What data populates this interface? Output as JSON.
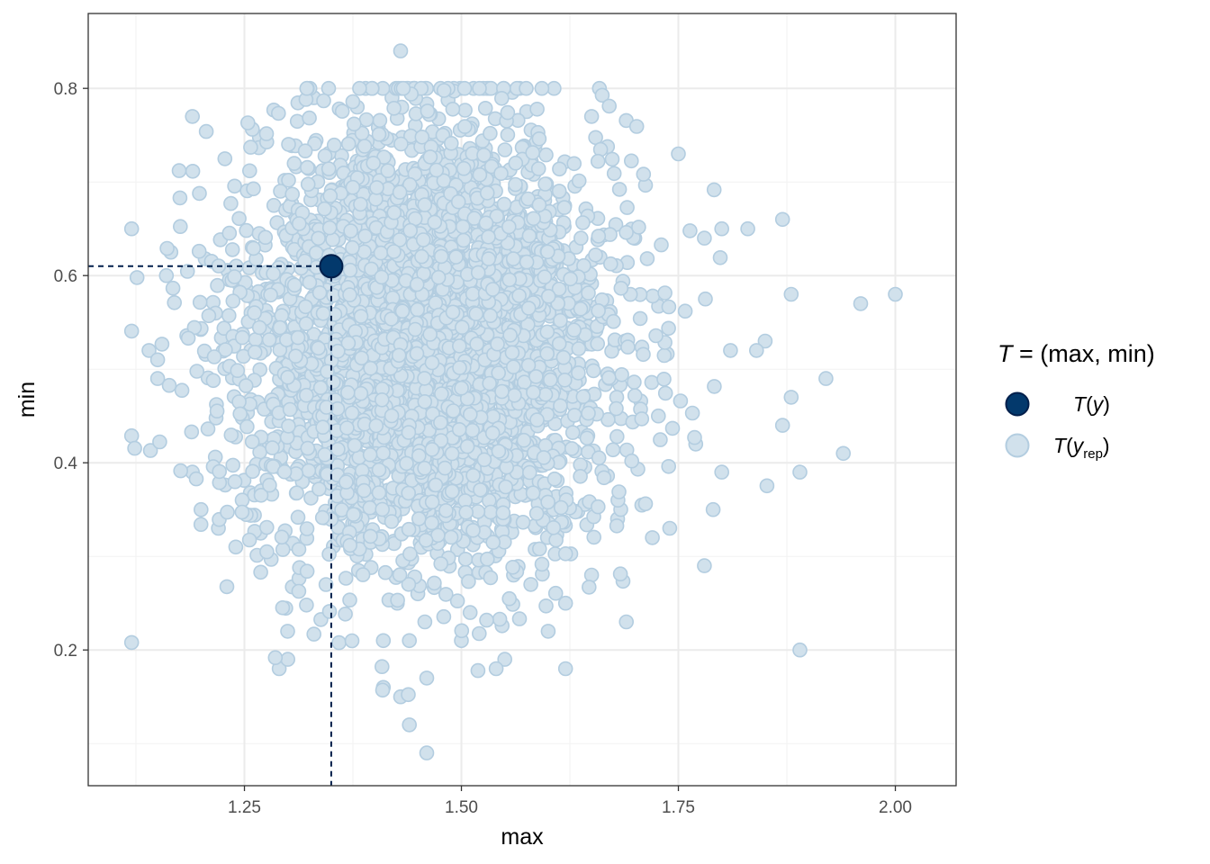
{
  "chart_data": {
    "type": "scatter",
    "xlabel": "max",
    "ylabel": "min",
    "xlim": [
      1.07,
      2.07
    ],
    "ylim": [
      0.055,
      0.88
    ],
    "x_ticks": [
      1.25,
      1.5,
      1.75,
      2.0
    ],
    "x_tick_labels": [
      "1.25",
      "1.50",
      "1.75",
      "2.00"
    ],
    "y_ticks": [
      0.2,
      0.4,
      0.6,
      0.8
    ],
    "y_tick_labels": [
      "0.2",
      "0.4",
      "0.6",
      "0.8"
    ],
    "grid": true,
    "legend_position": "right",
    "legend": {
      "title_prefix": "T = (",
      "title_main": "max, min",
      "title_suffix": ")",
      "entries": [
        {
          "label": "T(y)",
          "color": "#03396c"
        },
        {
          "label": "T(y_rep)",
          "sub": "rep",
          "color": "#d1e1ec"
        }
      ]
    },
    "observed": {
      "name": "T(y)",
      "x": 1.35,
      "y": 0.61,
      "color": "#03396c",
      "edge": "#011f4b"
    },
    "replicates": {
      "name": "T(y_rep)",
      "color": "#d1e1ec",
      "edge": "#b3cde0",
      "count": 4000,
      "center": [
        1.46,
        0.53
      ],
      "sd": [
        0.105,
        0.115
      ],
      "points": [
        [
          1.43,
          0.84
        ],
        [
          2.0,
          0.58
        ],
        [
          1.96,
          0.57
        ],
        [
          1.92,
          0.49
        ],
        [
          1.94,
          0.41
        ],
        [
          1.89,
          0.39
        ],
        [
          1.89,
          0.2
        ],
        [
          1.87,
          0.66
        ],
        [
          1.88,
          0.58
        ],
        [
          1.87,
          0.44
        ],
        [
          1.88,
          0.47
        ],
        [
          1.12,
          0.65
        ],
        [
          1.14,
          0.52
        ],
        [
          1.15,
          0.49
        ],
        [
          1.19,
          0.77
        ],
        [
          1.2,
          0.35
        ],
        [
          1.46,
          0.09
        ],
        [
          1.44,
          0.12
        ],
        [
          1.46,
          0.17
        ],
        [
          1.29,
          0.18
        ],
        [
          1.3,
          0.19
        ],
        [
          1.62,
          0.18
        ],
        [
          1.55,
          0.19
        ],
        [
          1.54,
          0.18
        ],
        [
          1.75,
          0.73
        ],
        [
          1.65,
          0.77
        ],
        [
          1.42,
          0.79
        ],
        [
          1.78,
          0.29
        ],
        [
          1.79,
          0.35
        ],
        [
          1.74,
          0.33
        ],
        [
          1.78,
          0.64
        ],
        [
          1.83,
          0.65
        ],
        [
          1.8,
          0.65
        ],
        [
          1.85,
          0.53
        ],
        [
          1.69,
          0.23
        ],
        [
          1.41,
          0.21
        ],
        [
          1.44,
          0.21
        ],
        [
          1.43,
          0.15
        ],
        [
          1.41,
          0.16
        ],
        [
          1.5,
          0.21
        ],
        [
          1.51,
          0.24
        ],
        [
          1.6,
          0.22
        ],
        [
          1.62,
          0.25
        ],
        [
          1.33,
          0.79
        ],
        [
          1.38,
          0.78
        ],
        [
          1.24,
          0.31
        ],
        [
          1.22,
          0.33
        ],
        [
          1.19,
          0.39
        ],
        [
          1.15,
          0.51
        ],
        [
          1.16,
          0.6
        ],
        [
          1.77,
          0.42
        ],
        [
          1.8,
          0.39
        ],
        [
          1.81,
          0.52
        ],
        [
          1.84,
          0.52
        ],
        [
          1.72,
          0.32
        ],
        [
          1.68,
          0.34
        ],
        [
          1.65,
          0.28
        ],
        [
          1.56,
          0.28
        ],
        [
          1.58,
          0.27
        ]
      ]
    }
  }
}
